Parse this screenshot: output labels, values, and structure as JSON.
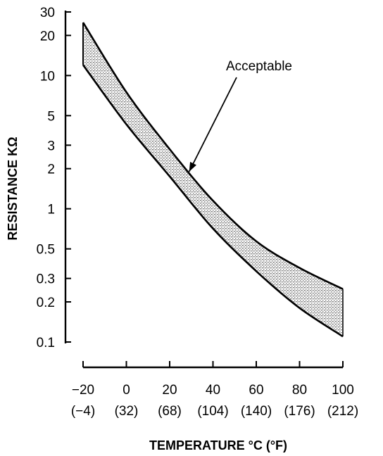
{
  "chart_data": {
    "type": "area",
    "title": "",
    "xlabel": "TEMPERATURE °C (°F)",
    "ylabel": "RESISTANCE KΩ",
    "y_scale": "log",
    "ylim": [
      0.1,
      30
    ],
    "xlim": [
      -20,
      100
    ],
    "y_ticks": [
      {
        "value": 30,
        "label": "30"
      },
      {
        "value": 20,
        "label": "20"
      },
      {
        "value": 10,
        "label": "10"
      },
      {
        "value": 5,
        "label": "5"
      },
      {
        "value": 3,
        "label": "3"
      },
      {
        "value": 2,
        "label": "2"
      },
      {
        "value": 1,
        "label": "1"
      },
      {
        "value": 0.5,
        "label": "0.5"
      },
      {
        "value": 0.3,
        "label": "0.3"
      },
      {
        "value": 0.2,
        "label": "0.2"
      },
      {
        "value": 0.1,
        "label": "0.1"
      }
    ],
    "x_ticks": [
      {
        "value": -20,
        "label": "−20",
        "sublabel": "(−4)"
      },
      {
        "value": 0,
        "label": "0",
        "sublabel": "(32)"
      },
      {
        "value": 20,
        "label": "20",
        "sublabel": "(68)"
      },
      {
        "value": 40,
        "label": "40",
        "sublabel": "(104)"
      },
      {
        "value": 60,
        "label": "60",
        "sublabel": "(140)"
      },
      {
        "value": 80,
        "label": "80",
        "sublabel": "(176)"
      },
      {
        "value": 100,
        "label": "100",
        "sublabel": "(212)"
      }
    ],
    "band": {
      "name": "Acceptable",
      "upper": {
        "x": [
          -20,
          0,
          20,
          40,
          60,
          80,
          100
        ],
        "y": [
          25,
          7.5,
          2.8,
          1.15,
          0.57,
          0.36,
          0.25
        ]
      },
      "lower": {
        "x": [
          -20,
          0,
          20,
          40,
          60,
          80,
          100
        ],
        "y": [
          12,
          4.3,
          1.75,
          0.71,
          0.34,
          0.18,
          0.11
        ]
      }
    },
    "annotations": [
      {
        "text": "Acceptable",
        "x": 29,
        "y": 1.9
      }
    ],
    "grid": false,
    "legend": "none",
    "colors": {
      "band_fill": "#bdbdbd",
      "line": "#000000",
      "background": "#ffffff"
    }
  }
}
